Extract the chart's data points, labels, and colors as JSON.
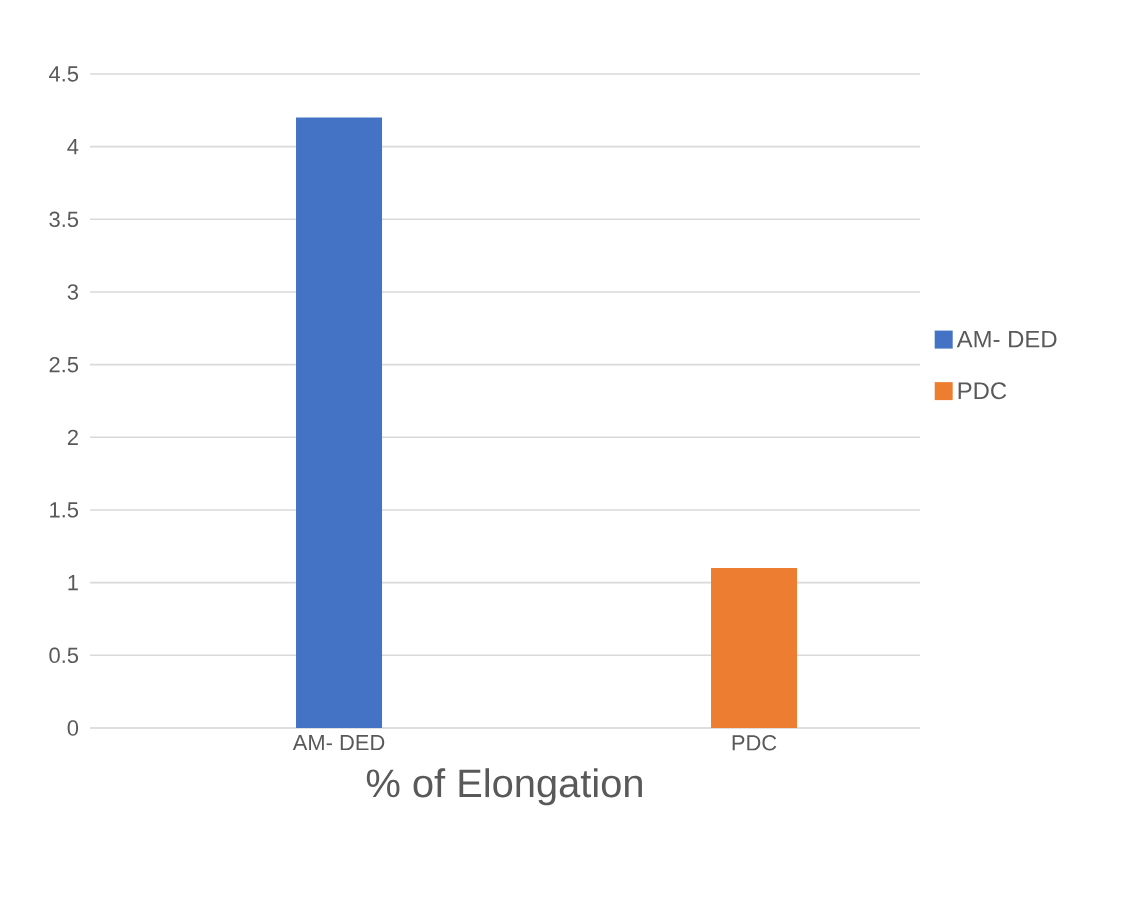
{
  "chart_data": {
    "type": "bar",
    "xlabel": "% of Elongation",
    "categories": [
      "AM- DED",
      "PDC"
    ],
    "series": [
      {
        "name": "AM- DED",
        "color": "#4472c4",
        "values": [
          4.2,
          null
        ]
      },
      {
        "name": "PDC",
        "color": "#ed7d31",
        "values": [
          null,
          1.1
        ]
      }
    ],
    "ylim": [
      0,
      4.5
    ],
    "yticks": [
      0,
      0.5,
      1,
      1.5,
      2,
      2.5,
      3,
      3.5,
      4,
      4.5
    ],
    "grid": "y",
    "legend": "right"
  }
}
